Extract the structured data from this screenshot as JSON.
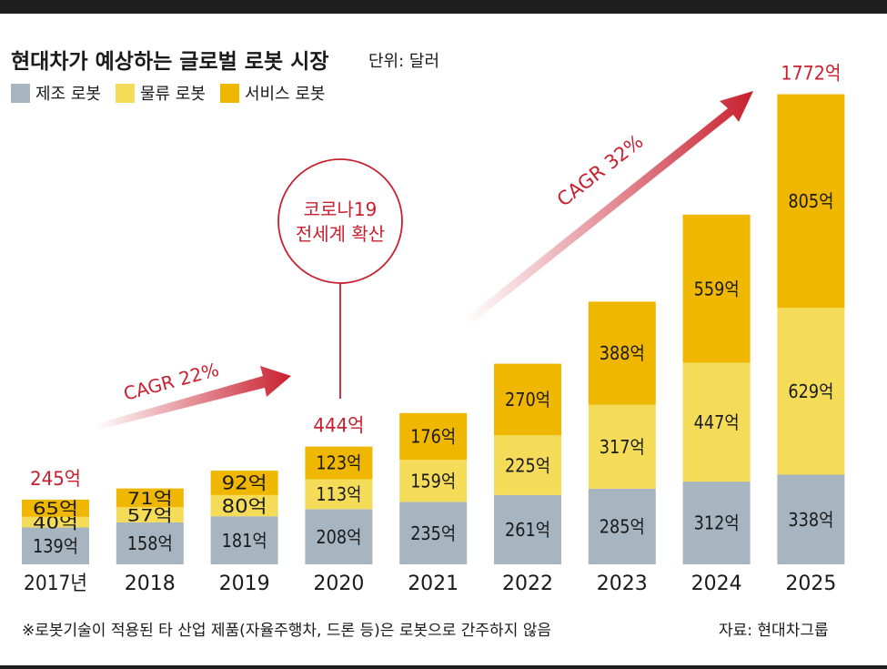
{
  "header": {
    "title": "현대차가 예상하는 글로벌 로봇 시장",
    "unit": "단위: 달러"
  },
  "colors": {
    "manufacturing": "#a6b5bf",
    "logistics": "#f5dc58",
    "service": "#f0b700",
    "accent_red": "#c8202f",
    "text": "#1a1a1a"
  },
  "chart_data": {
    "type": "bar",
    "stacked": true,
    "categories": [
      "2017년",
      "2018",
      "2019",
      "2020",
      "2021",
      "2022",
      "2023",
      "2024",
      "2025"
    ],
    "series": [
      {
        "name": "제조 로봇",
        "values": [
          139,
          158,
          181,
          208,
          235,
          261,
          285,
          312,
          338
        ],
        "labels": [
          "139억",
          "158억",
          "181억",
          "208억",
          "235억",
          "261억",
          "285억",
          "312억",
          "338억"
        ]
      },
      {
        "name": "물류 로봇",
        "values": [
          40,
          57,
          80,
          113,
          159,
          225,
          317,
          447,
          629
        ],
        "labels": [
          "40억",
          "57억",
          "80억",
          "113억",
          "159억",
          "225억",
          "317억",
          "447억",
          "629억"
        ]
      },
      {
        "name": "서비스 로봇",
        "values": [
          65,
          71,
          92,
          123,
          176,
          270,
          388,
          559,
          805
        ],
        "labels": [
          "65억",
          "71억",
          "92억",
          "123억",
          "176억",
          "270억",
          "388억",
          "559억",
          "805억"
        ]
      }
    ],
    "totals": {
      "2017년": "245억",
      "2020": "444억",
      "2025": "1772억"
    },
    "unit": "억 달러",
    "annotations": {
      "cagr_1": "CAGR 22%",
      "cagr_2": "CAGR 32%",
      "covid_line1": "코로나19",
      "covid_line2": "전세계 확산"
    },
    "legend_position": "top-left",
    "grid": false
  },
  "footer": {
    "note": "※로봇기술이 적용된 타 산업 제품(자율주행차, 드론 등)은 로봇으로 간주하지 않음",
    "source": "자료: 현대차그룹"
  }
}
